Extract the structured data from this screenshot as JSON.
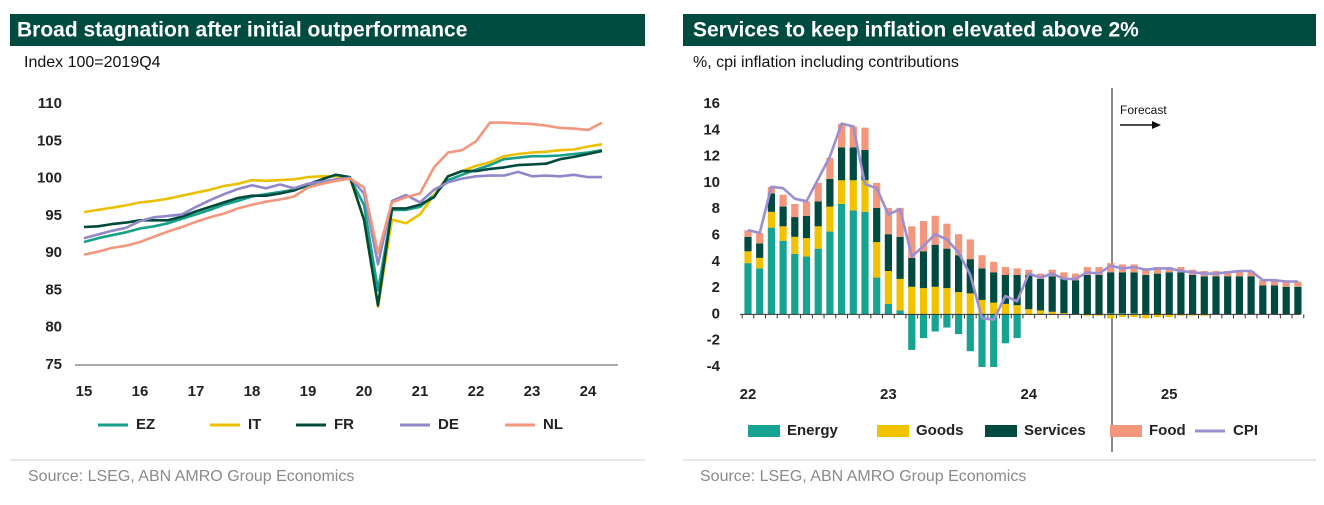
{
  "chart_data": [
    {
      "type": "line",
      "title": "Broad stagnation after initial outperformance",
      "subtitle": "Index 100=2019Q4",
      "source": "Source: LSEG, ABN AMRO Group Economics",
      "categories": [
        "15",
        null,
        null,
        null,
        "16",
        null,
        null,
        null,
        "17",
        null,
        null,
        null,
        "18",
        null,
        null,
        null,
        "19",
        null,
        null,
        null,
        "20",
        null,
        null,
        null,
        "21",
        null,
        null,
        null,
        "22",
        null,
        null,
        null,
        "23",
        null,
        null,
        null,
        "24",
        null
      ],
      "ylim": [
        75,
        110
      ],
      "yticks": [
        75,
        80,
        85,
        90,
        95,
        100,
        105,
        110
      ],
      "grid": false,
      "series": [
        {
          "name": "EZ",
          "color": "#16a08c",
          "values": [
            91.5,
            92,
            92.4,
            92.8,
            93.3,
            93.6,
            94,
            94.6,
            95.2,
            95.8,
            96.5,
            97,
            97.6,
            97.9,
            98.2,
            98.5,
            99,
            99.4,
            99.8,
            100,
            96.5,
            85,
            95.8,
            95.8,
            96.2,
            97.8,
            99.8,
            100.5,
            101.2,
            101.8,
            102.6,
            102.8,
            103,
            103,
            103.1,
            103.3,
            103.5,
            103.8
          ]
        },
        {
          "name": "IT",
          "color": "#ecc000",
          "values": [
            95.5,
            95.8,
            96.1,
            96.4,
            96.8,
            97,
            97.3,
            97.7,
            98.1,
            98.5,
            99,
            99.3,
            99.8,
            99.7,
            99.8,
            99.9,
            100.2,
            100.3,
            100.3,
            100,
            94.5,
            82.8,
            94.5,
            94,
            95.2,
            97.8,
            100.3,
            101,
            101.7,
            102.2,
            103,
            103.3,
            103.5,
            103.6,
            103.8,
            103.9,
            104.3,
            104.6
          ]
        },
        {
          "name": "FR",
          "color": "#004a3c",
          "values": [
            93.5,
            93.6,
            93.9,
            94.1,
            94.4,
            94.4,
            94.4,
            94.9,
            95.6,
            96.2,
            96.8,
            97.4,
            97.7,
            97.7,
            98,
            98.4,
            99.2,
            99.9,
            100.5,
            100.2,
            94.5,
            83,
            96,
            96,
            96.5,
            97.5,
            100.3,
            101,
            101,
            101.3,
            101.5,
            101.8,
            101.9,
            102,
            102.6,
            102.9,
            103.3,
            103.7
          ]
        },
        {
          "name": "DE",
          "color": "#9088c8",
          "values": [
            92,
            92.5,
            93,
            93.4,
            94.3,
            94.8,
            95,
            95.2,
            96.2,
            97.1,
            97.9,
            98.6,
            99.1,
            98.7,
            99.2,
            98.7,
            99.3,
            99.6,
            99.9,
            100.1,
            98,
            88.5,
            97,
            97.8,
            96.8,
            98.5,
            99.5,
            100,
            100.3,
            100.4,
            100.4,
            100.9,
            100.3,
            100.4,
            100.3,
            100.5,
            100.2,
            100.2
          ]
        },
        {
          "name": "NL",
          "color": "#f2967c",
          "values": [
            89.8,
            90.2,
            90.7,
            91,
            91.5,
            92.2,
            92.9,
            93.5,
            94.2,
            94.8,
            95.3,
            96,
            96.5,
            96.9,
            97.2,
            97.6,
            98.8,
            99.3,
            99.7,
            100,
            98.8,
            90,
            96.8,
            97.5,
            98,
            101.5,
            103.5,
            103.8,
            105,
            107.5,
            107.5,
            107.4,
            107.3,
            107.1,
            106.8,
            106.7,
            106.5,
            107.5
          ]
        }
      ]
    },
    {
      "type": "bar",
      "stacked": true,
      "title": "Services to keep inflation elevated above 2%",
      "subtitle": "%, cpi inflation including contributions",
      "source": "Source: LSEG, ABN AMRO Group Economics",
      "annotation": "Forecast",
      "categories": [
        "22",
        null,
        null,
        null,
        null,
        null,
        null,
        null,
        null,
        null,
        null,
        null,
        "23",
        null,
        null,
        null,
        null,
        null,
        null,
        null,
        null,
        null,
        null,
        null,
        "24",
        null,
        null,
        null,
        null,
        null,
        null,
        null,
        null,
        null,
        null,
        null,
        "25",
        null,
        null,
        null,
        null,
        null,
        null,
        null,
        null,
        null,
        null,
        null
      ],
      "ylim": [
        -4,
        16
      ],
      "yticks": [
        -4,
        -2,
        0,
        2,
        4,
        6,
        8,
        10,
        12,
        14,
        16
      ],
      "grid": false,
      "series": [
        {
          "name": "Energy",
          "color": "#17a391",
          "values": [
            3.9,
            3.5,
            6.6,
            5.6,
            4.6,
            4.4,
            5.0,
            6.3,
            8.4,
            7.9,
            7.8,
            2.8,
            0.8,
            0.3,
            -2.7,
            -1.8,
            -1.3,
            -1.0,
            -1.5,
            -2.8,
            -4.0,
            -4.0,
            -2.2,
            -1.8,
            0,
            0,
            0,
            0,
            0,
            0,
            0,
            0.1,
            0.1,
            0.1,
            0,
            0,
            0,
            0,
            0,
            0,
            0,
            0,
            0,
            0,
            0,
            0,
            0,
            0
          ]
        },
        {
          "name": "Goods",
          "color": "#f0c200",
          "values": [
            0.9,
            0.8,
            1.2,
            1.1,
            1.3,
            1.4,
            1.7,
            1.9,
            1.8,
            2.3,
            2.4,
            2.7,
            2.5,
            2.4,
            2.1,
            2.0,
            2.1,
            2.0,
            1.7,
            1.6,
            1.1,
            0.9,
            0.8,
            0.7,
            0.4,
            0.3,
            0.2,
            0.1,
            0,
            -0.1,
            -0.1,
            -0.3,
            -0.2,
            -0.2,
            -0.3,
            -0.2,
            -0.2,
            -0.1,
            -0.1,
            -0.1,
            0,
            0,
            0,
            0,
            0,
            0,
            0,
            0
          ]
        },
        {
          "name": "Services",
          "color": "#004a3f",
          "values": [
            1.1,
            1.1,
            1.4,
            1.5,
            1.5,
            1.7,
            1.9,
            2.1,
            2.5,
            2.5,
            2.3,
            2.6,
            2.8,
            3.2,
            2.2,
            2.8,
            3.2,
            3.0,
            2.8,
            2.6,
            2.4,
            2.3,
            2.2,
            2.3,
            2.6,
            2.4,
            2.7,
            2.6,
            2.6,
            3.0,
            3.0,
            3.1,
            3.1,
            3.1,
            3.0,
            3.1,
            3.2,
            3.2,
            3.0,
            2.9,
            2.9,
            2.9,
            2.9,
            2.9,
            2.2,
            2.2,
            2.1,
            2.1
          ]
        },
        {
          "name": "Food",
          "color": "#f2967c",
          "values": [
            0.5,
            0.8,
            0.5,
            0.9,
            1.0,
            1.1,
            1.4,
            1.6,
            1.8,
            1.6,
            1.7,
            1.9,
            2.0,
            2.2,
            2.4,
            2.3,
            2.2,
            1.9,
            1.6,
            1.5,
            1.0,
            0.8,
            0.6,
            0.5,
            0.4,
            0.4,
            0.5,
            0.5,
            0.5,
            0.6,
            0.6,
            0.7,
            0.6,
            0.6,
            0.5,
            0.5,
            0.4,
            0.4,
            0.4,
            0.4,
            0.4,
            0.4,
            0.4,
            0.4,
            0.4,
            0.4,
            0.4,
            0.4
          ]
        },
        {
          "name": "CPI",
          "type": "line",
          "color": "#9b8fd2",
          "values": [
            6.4,
            6.2,
            9.7,
            9.6,
            8.8,
            8.6,
            10.3,
            12.0,
            14.5,
            14.3,
            9.9,
            9.6,
            7.6,
            8.0,
            4.4,
            5.2,
            6.1,
            5.7,
            4.7,
            3.0,
            -0.3,
            -0.4,
            1.4,
            1.0,
            3.1,
            2.8,
            3.1,
            2.7,
            2.7,
            3.2,
            3.1,
            3.7,
            3.5,
            3.6,
            3.4,
            3.5,
            3.5,
            3.3,
            3.2,
            3.1,
            3.1,
            3.2,
            3.3,
            3.3,
            2.6,
            2.6,
            2.5,
            2.5
          ]
        }
      ]
    }
  ]
}
